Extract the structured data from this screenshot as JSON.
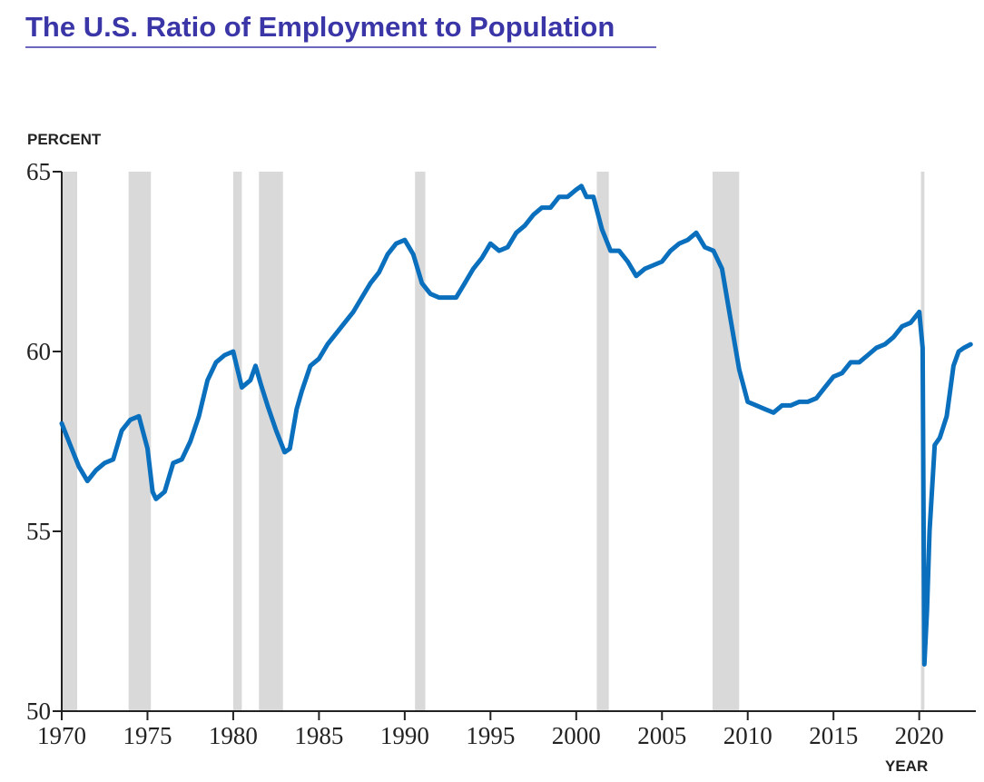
{
  "chart_data": {
    "type": "line",
    "title": "The U.S. Ratio of Employment to Population",
    "y_label": "PERCENT",
    "x_label": "YEAR",
    "xlim": [
      1970,
      2023.3
    ],
    "ylim": [
      50,
      65
    ],
    "xticks": [
      1970,
      1975,
      1980,
      1985,
      1990,
      1995,
      2000,
      2005,
      2010,
      2015,
      2020
    ],
    "yticks": [
      50,
      55,
      60,
      65
    ],
    "recession_color": "#d9d9d9",
    "recessions": [
      [
        1969.95,
        1970.9
      ],
      [
        1973.9,
        1975.2
      ],
      [
        1980.0,
        1980.5
      ],
      [
        1981.5,
        1982.9
      ],
      [
        1990.6,
        1991.2
      ],
      [
        2001.2,
        2001.9
      ],
      [
        2007.95,
        2009.5
      ],
      [
        2020.1,
        2020.3
      ]
    ],
    "series": [
      {
        "color": "#0a6fbd",
        "x": [
          1970.0,
          1970.5,
          1971.0,
          1971.5,
          1972.0,
          1972.5,
          1973.0,
          1973.5,
          1974.0,
          1974.5,
          1975.0,
          1975.3,
          1975.5,
          1976.0,
          1976.5,
          1977.0,
          1977.5,
          1978.0,
          1978.5,
          1979.0,
          1979.5,
          1980.0,
          1980.5,
          1981.0,
          1981.3,
          1981.6,
          1982.0,
          1982.5,
          1983.0,
          1983.3,
          1983.7,
          1984.0,
          1984.5,
          1985.0,
          1985.5,
          1986.0,
          1986.5,
          1987.0,
          1987.5,
          1988.0,
          1988.5,
          1989.0,
          1989.5,
          1990.0,
          1990.5,
          1991.0,
          1991.5,
          1992.0,
          1992.5,
          1993.0,
          1993.5,
          1994.0,
          1994.5,
          1995.0,
          1995.5,
          1996.0,
          1996.5,
          1997.0,
          1997.5,
          1998.0,
          1998.5,
          1999.0,
          1999.5,
          2000.0,
          2000.3,
          2000.6,
          2001.0,
          2001.5,
          2002.0,
          2002.5,
          2003.0,
          2003.5,
          2004.0,
          2004.5,
          2005.0,
          2005.5,
          2006.0,
          2006.5,
          2007.0,
          2007.5,
          2008.0,
          2008.5,
          2009.0,
          2009.5,
          2010.0,
          2010.5,
          2011.0,
          2011.5,
          2012.0,
          2012.5,
          2013.0,
          2013.5,
          2014.0,
          2014.5,
          2015.0,
          2015.5,
          2016.0,
          2016.5,
          2017.0,
          2017.5,
          2018.0,
          2018.5,
          2019.0,
          2019.5,
          2020.0,
          2020.2,
          2020.3,
          2020.45,
          2020.6,
          2020.9,
          2021.2,
          2021.6,
          2022.0,
          2022.3,
          2022.6,
          2023.0
        ],
        "values": [
          58.0,
          57.4,
          56.8,
          56.4,
          56.7,
          56.9,
          57.0,
          57.8,
          58.1,
          58.2,
          57.3,
          56.1,
          55.9,
          56.1,
          56.9,
          57.0,
          57.5,
          58.2,
          59.2,
          59.7,
          59.9,
          60.0,
          59.0,
          59.2,
          59.6,
          59.1,
          58.5,
          57.8,
          57.2,
          57.3,
          58.4,
          58.9,
          59.6,
          59.8,
          60.2,
          60.5,
          60.8,
          61.1,
          61.5,
          61.9,
          62.2,
          62.7,
          63.0,
          63.1,
          62.7,
          61.9,
          61.6,
          61.5,
          61.5,
          61.5,
          61.9,
          62.3,
          62.6,
          63.0,
          62.8,
          62.9,
          63.3,
          63.5,
          63.8,
          64.0,
          64.0,
          64.3,
          64.3,
          64.5,
          64.6,
          64.3,
          64.3,
          63.4,
          62.8,
          62.8,
          62.5,
          62.1,
          62.3,
          62.4,
          62.5,
          62.8,
          63.0,
          63.1,
          63.3,
          62.9,
          62.8,
          62.3,
          60.9,
          59.5,
          58.6,
          58.5,
          58.4,
          58.3,
          58.5,
          58.5,
          58.6,
          58.6,
          58.7,
          59.0,
          59.3,
          59.4,
          59.7,
          59.7,
          59.9,
          60.1,
          60.2,
          60.4,
          60.7,
          60.8,
          61.1,
          60.1,
          51.3,
          52.8,
          55.0,
          57.4,
          57.6,
          58.2,
          59.6,
          60.0,
          60.1,
          60.2
        ]
      }
    ]
  }
}
